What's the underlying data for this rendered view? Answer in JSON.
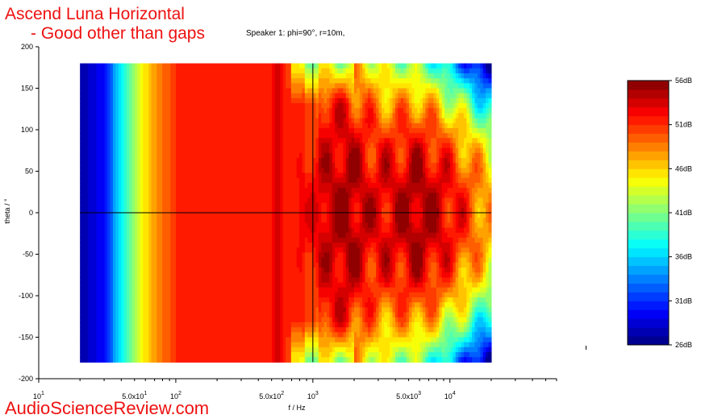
{
  "header": {
    "title_line1": "Ascend Luna Horizontal",
    "title_line2": "- Good other than gaps",
    "subtitle": "Speaker 1: phi=90°, r=10m,"
  },
  "watermark": "AudioScienceReview.com",
  "colors": {
    "title": "#ee1111",
    "axis": "#000000"
  },
  "chart_data": {
    "type": "heatmap",
    "xlabel": "f / Hz",
    "ylabel": "theta / °",
    "xscale": "log",
    "xlim": [
      10,
      60000
    ],
    "ylim": [
      -200,
      200
    ],
    "data_x_range": [
      20,
      20000
    ],
    "data_y_range": [
      -180,
      180
    ],
    "x_ticks": [
      {
        "value": 10,
        "base": "10",
        "exp": "1"
      },
      {
        "value": 50,
        "base": "5.0x10",
        "exp": "1"
      },
      {
        "value": 100,
        "base": "10",
        "exp": "2"
      },
      {
        "value": 500,
        "base": "5.0x10",
        "exp": "2"
      },
      {
        "value": 1000,
        "base": "10",
        "exp": "3"
      },
      {
        "value": 5000,
        "base": "5.0x10",
        "exp": "3"
      },
      {
        "value": 10000,
        "base": "10",
        "exp": "4"
      }
    ],
    "y_ticks": [
      200,
      150,
      100,
      50,
      0,
      -50,
      -100,
      -150,
      -200
    ],
    "cursor": {
      "f": 1000,
      "theta": 0
    },
    "colorbar": {
      "min": 26,
      "max": 56,
      "unit": "dB",
      "tick_labels": [
        "56dB",
        "51dB",
        "46dB",
        "41dB",
        "36dB",
        "31dB",
        "26dB"
      ],
      "tick_values": [
        56,
        51,
        46,
        41,
        36,
        31,
        26
      ],
      "levels": 30
    }
  }
}
